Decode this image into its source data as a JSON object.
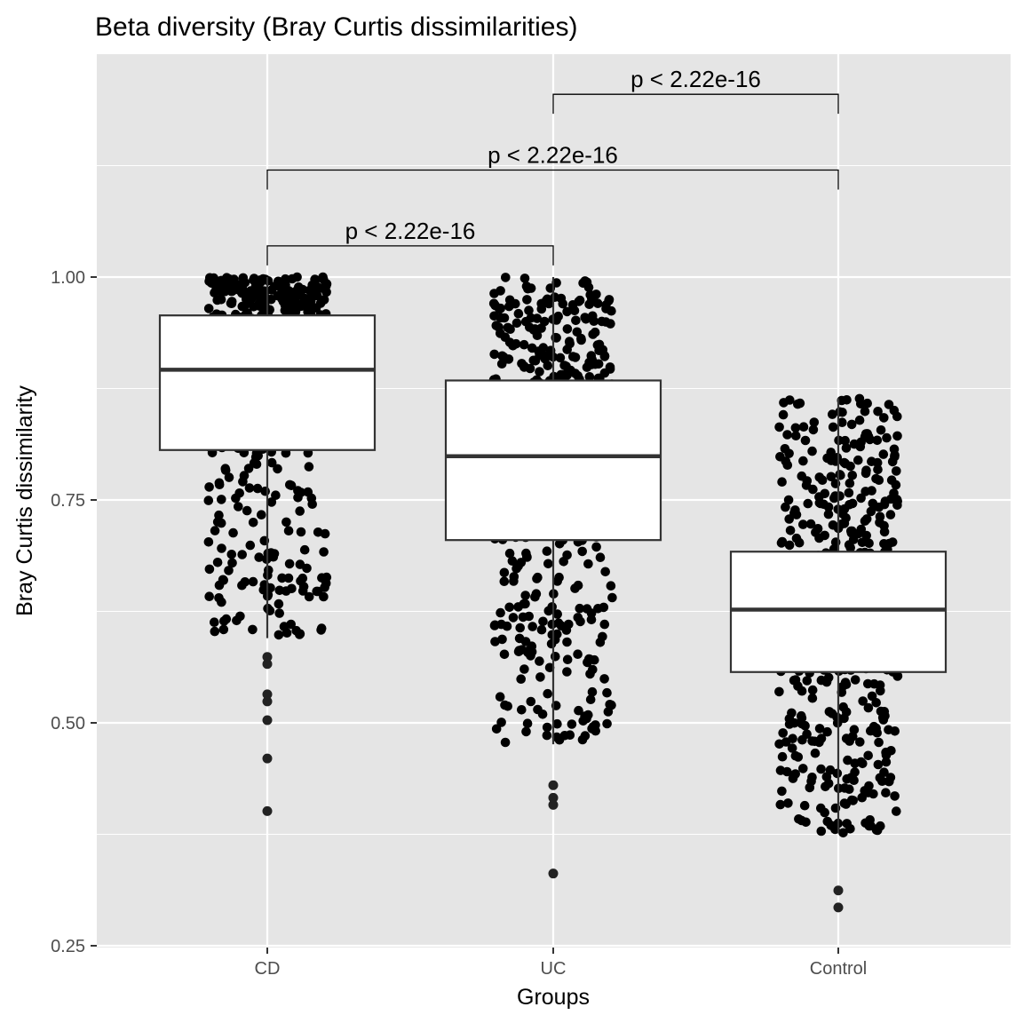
{
  "chart_data": {
    "type": "box",
    "title": "Beta diversity (Bray Curtis dissimilarities)",
    "xlabel": "Groups",
    "ylabel": "Bray Curtis dissimilarity",
    "categories": [
      "CD",
      "UC",
      "Control"
    ],
    "yticks": [
      0.25,
      0.5,
      0.75,
      1.0
    ],
    "ytick_labels": [
      "0.25",
      "0.50",
      "0.75",
      "1.00"
    ],
    "ylim": [
      0.25,
      1.25
    ],
    "grid": true,
    "panel_background": "#e5e5e5",
    "boxes": [
      {
        "category": "CD",
        "whisker_low": 0.595,
        "q1": 0.806,
        "median": 0.896,
        "q3": 0.957,
        "whisker_high": 1.0
      },
      {
        "category": "UC",
        "whisker_low": 0.476,
        "q1": 0.705,
        "median": 0.799,
        "q3": 0.884,
        "whisker_high": 1.0
      },
      {
        "category": "Control",
        "whisker_low": 0.376,
        "q1": 0.557,
        "median": 0.627,
        "q3": 0.692,
        "whisker_high": 0.864
      }
    ],
    "outliers": [
      {
        "category": "CD",
        "values": [
          0.401,
          0.46,
          0.503,
          0.524,
          0.532,
          0.566,
          0.574
        ]
      },
      {
        "category": "UC",
        "values": [
          0.331,
          0.408,
          0.416,
          0.43
        ]
      },
      {
        "category": "Control",
        "values": [
          0.293,
          0.312
        ]
      }
    ],
    "jitter_points": [
      {
        "category": "CD",
        "n": 560,
        "min": 0.4,
        "max": 1.0
      },
      {
        "category": "UC",
        "n": 600,
        "min": 0.33,
        "max": 1.0
      },
      {
        "category": "Control",
        "n": 640,
        "min": 0.29,
        "max": 0.865
      }
    ],
    "comparisons": [
      {
        "group1": "CD",
        "group2": "UC",
        "label": "p < 2.22e-16",
        "y": 1.035
      },
      {
        "group1": "CD",
        "group2": "Control",
        "label": "p < 2.22e-16",
        "y": 1.12
      },
      {
        "group1": "UC",
        "group2": "Control",
        "label": "p < 2.22e-16",
        "y": 1.205
      }
    ]
  }
}
